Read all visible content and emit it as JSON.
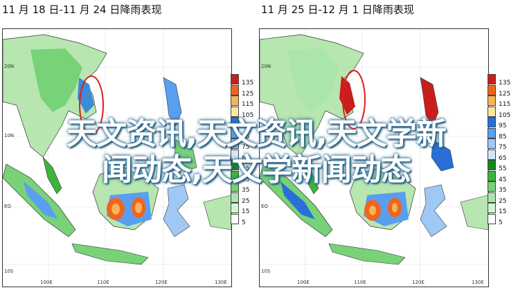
{
  "panels": [
    {
      "title": "11 月 18 日-11 月 24 日降雨表现",
      "lat_labels": [
        "20N",
        "10N",
        "EQ",
        "10S"
      ],
      "lon_labels": [
        "100E",
        "110E",
        "120E",
        "130E"
      ]
    },
    {
      "title": "11 月 25 日-12 月 1 日降雨表现",
      "lat_labels": [
        "20N",
        "10N",
        "EQ",
        "10S"
      ],
      "lon_labels": [
        "100E",
        "110E",
        "120E",
        "130E"
      ]
    }
  ],
  "legend": {
    "levels": [
      "135",
      "125",
      "115",
      "105",
      "95",
      "85",
      "75",
      "65",
      "55",
      "45",
      "35",
      "25",
      "15",
      "5"
    ],
    "colors": [
      "#c81e1e",
      "#f0641e",
      "#f5b45a",
      "#fde7a0",
      "#2a6fd8",
      "#5a9ef0",
      "#a0c8f5",
      "#d2e6fb",
      "#0f8a1e",
      "#3cb43c",
      "#78d278",
      "#aae6aa",
      "#d2f5d2",
      "#ffffff"
    ]
  },
  "watermark": {
    "line1": "天文资讯,天文资讯,天文学新",
    "line2": "闻动态,天文学新闻动态"
  },
  "colors": {
    "land": "#b7e6b0",
    "land_dark": "#5fbf5f",
    "wet_blue": "#5a9ef0",
    "dry_orange": "#f0641e",
    "highlight_ring": "#e01b1b"
  }
}
